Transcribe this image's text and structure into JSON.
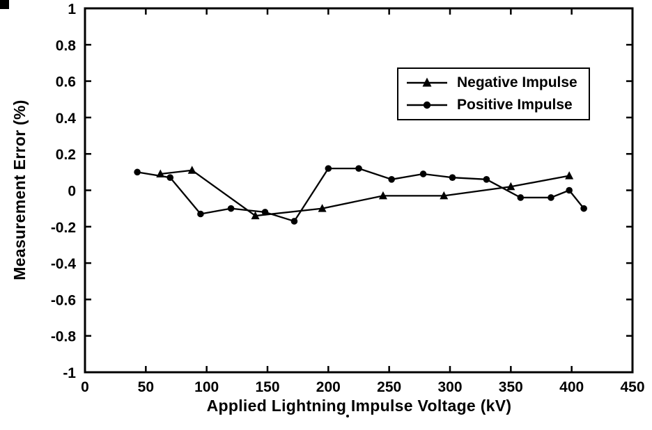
{
  "figure": {
    "background": "#ffffff",
    "ink_color": "#000000"
  },
  "chart_data": {
    "type": "line",
    "title": "",
    "xlabel": "Applied Lightning Impulse Voltage (kV)",
    "ylabel": "Measurement Error (%)",
    "xlim": [
      0,
      450
    ],
    "ylim": [
      -1,
      1
    ],
    "grid": false,
    "legend_position": "upper-right-inside",
    "x_ticks": [
      0,
      50,
      100,
      150,
      200,
      250,
      300,
      350,
      400,
      450
    ],
    "x_tick_labels": [
      "0",
      "50",
      "100",
      "150",
      "200",
      "250",
      "300",
      "350",
      "400",
      "450"
    ],
    "y_ticks": [
      -1,
      -0.8,
      -0.6,
      -0.4,
      -0.2,
      0,
      0.2,
      0.4,
      0.6,
      0.8,
      1
    ],
    "y_tick_labels": [
      "-1",
      "-0.8",
      "-0.6",
      "-0.4",
      "-0.2",
      "0",
      "0.2",
      "0.4",
      "0.6",
      "0.8",
      "1"
    ],
    "series": [
      {
        "name": "Negative Impulse",
        "marker": "triangle",
        "color": "#000000",
        "x": [
          62,
          88,
          140,
          195,
          245,
          295,
          350,
          398
        ],
        "y": [
          0.09,
          0.11,
          -0.14,
          -0.1,
          -0.03,
          -0.03,
          0.02,
          0.08
        ]
      },
      {
        "name": "Positive Impulse",
        "marker": "circle",
        "color": "#000000",
        "x": [
          43,
          70,
          95,
          120,
          148,
          172,
          200,
          225,
          252,
          278,
          302,
          330,
          358,
          383,
          398,
          410
        ],
        "y": [
          0.1,
          0.07,
          -0.13,
          -0.1,
          -0.12,
          -0.17,
          0.12,
          0.12,
          0.06,
          0.09,
          0.07,
          0.06,
          -0.04,
          -0.04,
          0.0,
          -0.1
        ]
      }
    ]
  }
}
